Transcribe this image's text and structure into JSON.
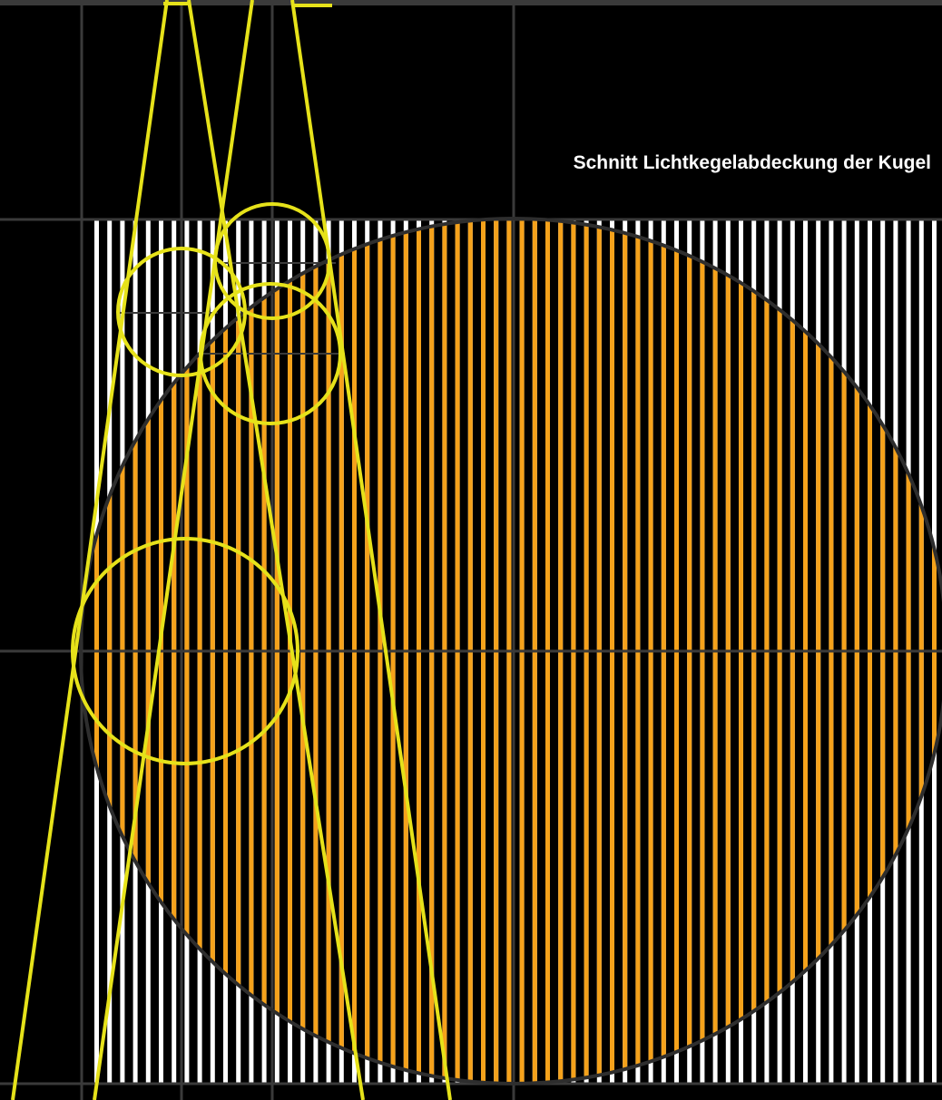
{
  "title": "Schnitt Lichtkegelabdeckung der Kugel",
  "colors": {
    "background": "#000000",
    "stripe_white": "#ffffff",
    "stripe_orange": "#f5a21b",
    "grid": "#3a3a3a",
    "sphere_outline": "#333333",
    "beam": "#e6e21a",
    "frame": "#555555"
  },
  "elements": {
    "sphere": "sphere-section",
    "stripes": "light-slats",
    "beams": "light-cone-lines",
    "circles": "light-cone-cross-sections",
    "grid": "construction-grid"
  }
}
